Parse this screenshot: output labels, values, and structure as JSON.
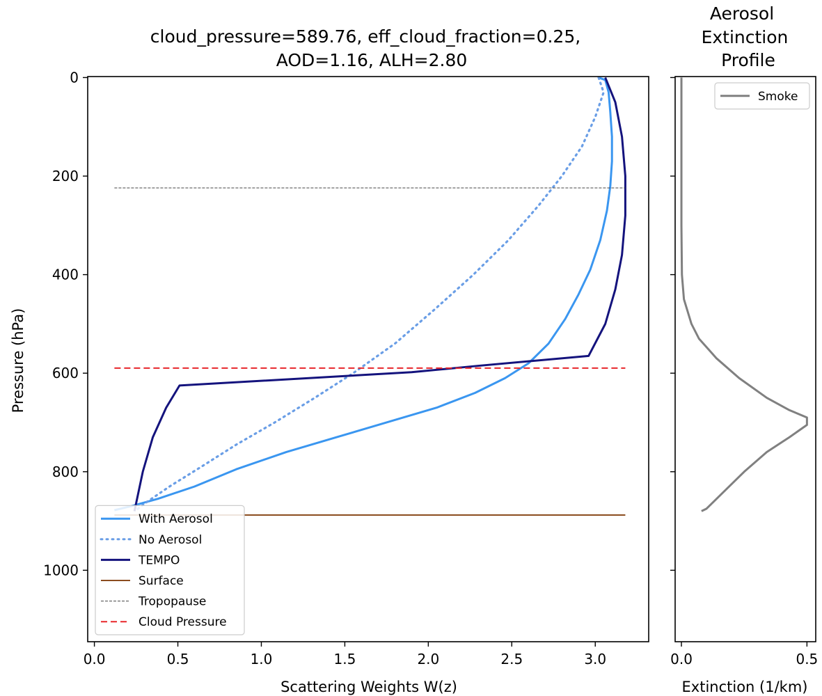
{
  "chart_data": [
    {
      "type": "line",
      "title_lines": [
        "cloud_pressure=589.76, eff_cloud_fraction=0.25,",
        "AOD=1.16, ALH=2.80"
      ],
      "xlabel": "Scattering Weights W(z)",
      "ylabel": "Pressure (hPa)",
      "xlim": [
        -0.04,
        3.32
      ],
      "ylim": [
        1145,
        -2
      ],
      "y_inverted": true,
      "xticks": [
        0.0,
        0.5,
        1.0,
        1.5,
        2.0,
        2.5,
        3.0
      ],
      "xtick_labels": [
        "0.0",
        "0.5",
        "1.0",
        "1.5",
        "2.0",
        "2.5",
        "3.0"
      ],
      "yticks": [
        0,
        200,
        400,
        600,
        800,
        1000
      ],
      "ytick_labels": [
        "0",
        "200",
        "400",
        "600",
        "800",
        "1000"
      ],
      "legend_position": "lower-left",
      "series": [
        {
          "name": "With Aerosol",
          "color": "#3a96f0",
          "style": "solid",
          "points": [
            [
              3.02,
              0
            ],
            [
              3.06,
              5
            ],
            [
              3.08,
              30
            ],
            [
              3.09,
              70
            ],
            [
              3.1,
              120
            ],
            [
              3.1,
              170
            ],
            [
              3.09,
              220
            ],
            [
              3.07,
              270
            ],
            [
              3.03,
              330
            ],
            [
              2.97,
              390
            ],
            [
              2.9,
              440
            ],
            [
              2.82,
              490
            ],
            [
              2.72,
              540
            ],
            [
              2.6,
              580
            ],
            [
              2.46,
              610
            ],
            [
              2.28,
              640
            ],
            [
              2.05,
              670
            ],
            [
              1.75,
              700
            ],
            [
              1.45,
              730
            ],
            [
              1.15,
              760
            ],
            [
              0.85,
              795
            ],
            [
              0.6,
              830
            ],
            [
              0.38,
              855
            ],
            [
              0.22,
              870
            ],
            [
              0.12,
              878
            ]
          ]
        },
        {
          "name": "No Aerosol",
          "color": "#6a9ee6",
          "style": "dotted",
          "points": [
            [
              3.02,
              0
            ],
            [
              3.05,
              30
            ],
            [
              3.0,
              80
            ],
            [
              2.92,
              140
            ],
            [
              2.8,
              200
            ],
            [
              2.66,
              260
            ],
            [
              2.48,
              330
            ],
            [
              2.27,
              400
            ],
            [
              2.04,
              470
            ],
            [
              1.8,
              540
            ],
            [
              1.55,
              600
            ],
            [
              1.32,
              650
            ],
            [
              1.08,
              700
            ],
            [
              0.85,
              745
            ],
            [
              0.64,
              790
            ],
            [
              0.45,
              830
            ],
            [
              0.32,
              860
            ],
            [
              0.25,
              878
            ]
          ]
        },
        {
          "name": "TEMPO",
          "color": "#14137d",
          "style": "solid",
          "points": [
            [
              3.06,
              0
            ],
            [
              3.12,
              50
            ],
            [
              3.16,
              120
            ],
            [
              3.18,
              200
            ],
            [
              3.18,
              280
            ],
            [
              3.16,
              360
            ],
            [
              3.12,
              430
            ],
            [
              3.06,
              500
            ],
            [
              2.96,
              565
            ],
            [
              2.3,
              585
            ],
            [
              1.9,
              598
            ],
            [
              0.51,
              625
            ],
            [
              0.43,
              670
            ],
            [
              0.35,
              730
            ],
            [
              0.29,
              800
            ],
            [
              0.24,
              880
            ]
          ]
        },
        {
          "name": "Surface",
          "color": "#8b4c1f",
          "style": "solid",
          "points": [
            [
              0.12,
              888
            ],
            [
              3.18,
              888
            ]
          ]
        },
        {
          "name": "Tropopause",
          "color": "#444444",
          "style": "dashed-thin",
          "points": [
            [
              0.12,
              224
            ],
            [
              3.18,
              224
            ]
          ]
        },
        {
          "name": "Cloud Pressure",
          "color": "#e8262a",
          "style": "dashed",
          "points": [
            [
              0.12,
              589.76
            ],
            [
              3.18,
              589.76
            ]
          ]
        }
      ]
    },
    {
      "type": "line",
      "title_lines": [
        "Aerosol",
        "Extinction",
        "Profile"
      ],
      "xlabel": "Extinction (1/km)",
      "ylabel": "",
      "xlim": [
        -0.025,
        0.535
      ],
      "ylim": [
        1145,
        -2
      ],
      "y_inverted": true,
      "xticks": [
        0.0,
        0.5
      ],
      "xtick_labels": [
        "0.0",
        "0.5"
      ],
      "yticks": [
        0,
        200,
        400,
        600,
        800,
        1000
      ],
      "legend_position": "top-right",
      "series": [
        {
          "name": "Smoke",
          "color": "#808080",
          "style": "solid",
          "points": [
            [
              0.0,
              0
            ],
            [
              0.0,
              100
            ],
            [
              0.0,
              200
            ],
            [
              0.0,
              300
            ],
            [
              0.002,
              400
            ],
            [
              0.01,
              450
            ],
            [
              0.04,
              500
            ],
            [
              0.07,
              530
            ],
            [
              0.14,
              570
            ],
            [
              0.23,
              610
            ],
            [
              0.34,
              650
            ],
            [
              0.43,
              675
            ],
            [
              0.5,
              690
            ],
            [
              0.5,
              705
            ],
            [
              0.43,
              730
            ],
            [
              0.34,
              760
            ],
            [
              0.25,
              800
            ],
            [
              0.17,
              840
            ],
            [
              0.1,
              875
            ],
            [
              0.08,
              880
            ]
          ]
        }
      ]
    }
  ]
}
